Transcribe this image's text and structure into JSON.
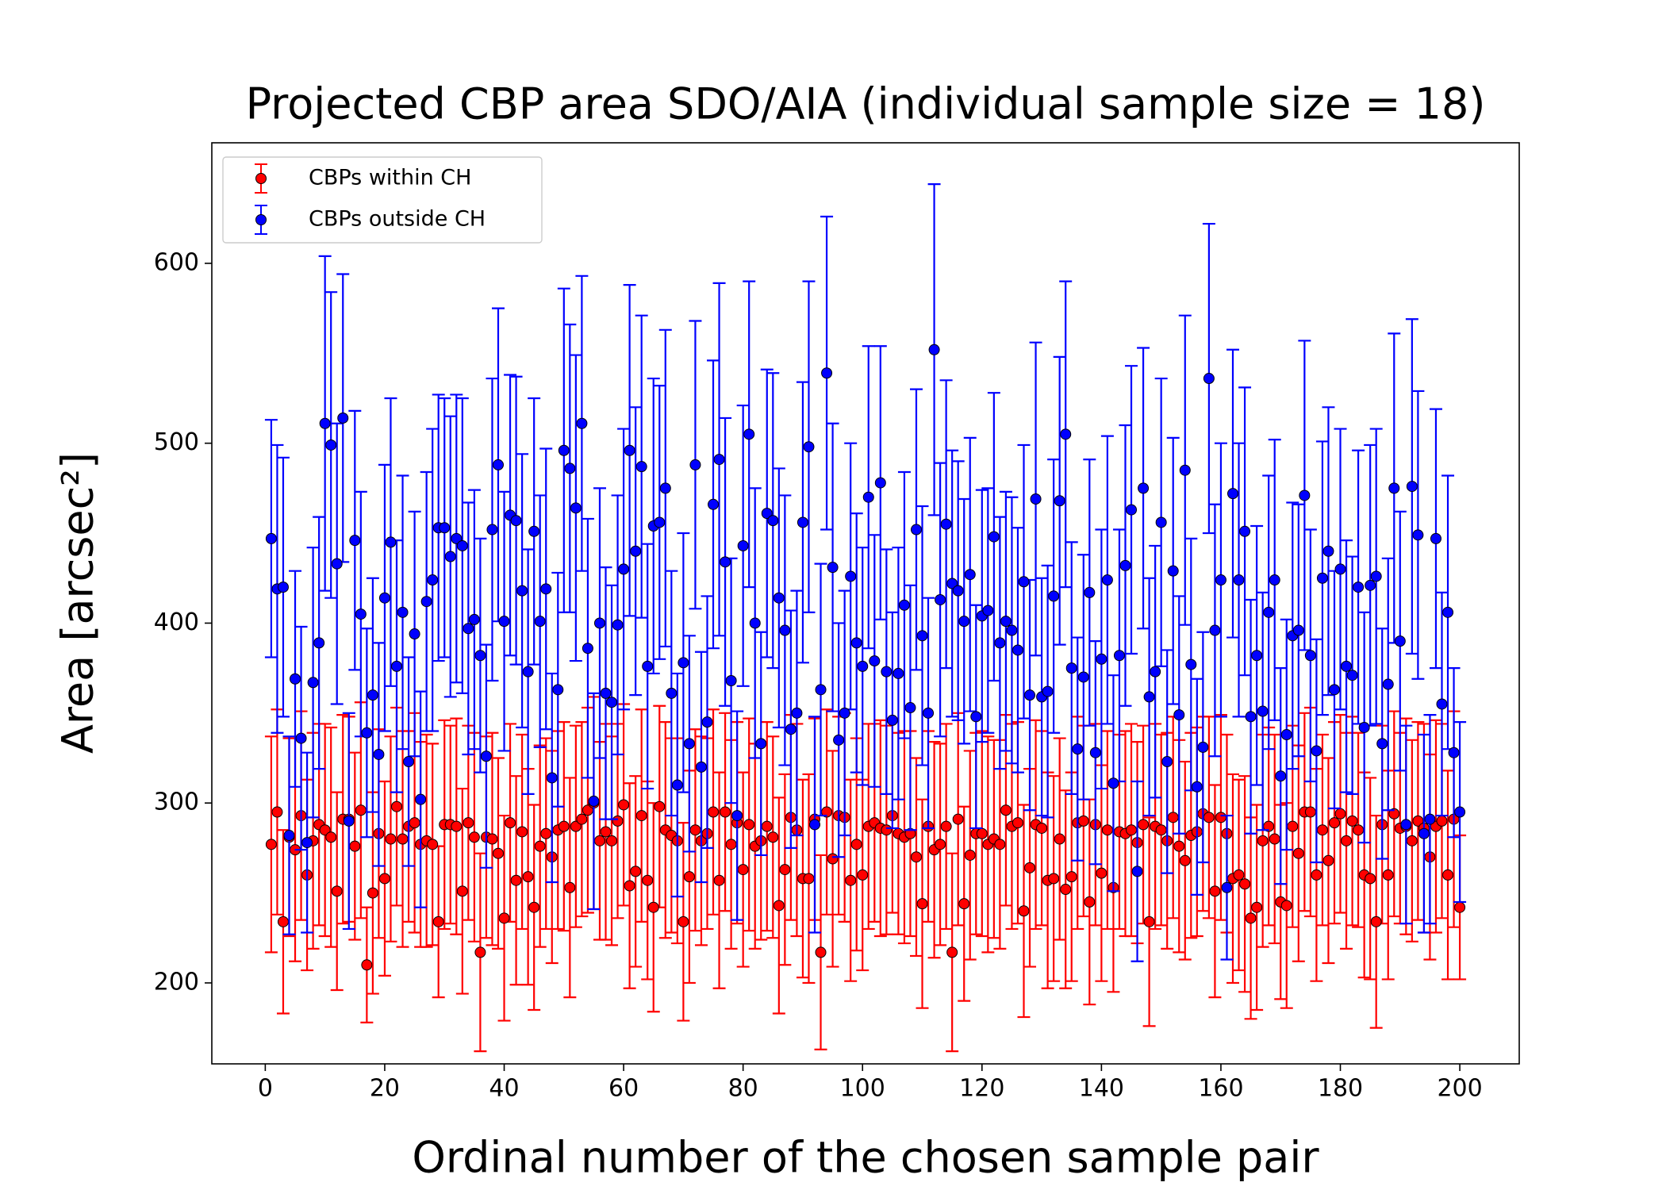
{
  "chart_data": {
    "type": "errorbar",
    "title": "Projected CBP area SDO/AIA (individual sample size = 18)",
    "xlabel": "Ordinal number of the chosen sample pair",
    "ylabel": "Area [arcsec²]",
    "xlim": [
      -8.95,
      209.95
    ],
    "ylim": [
      155,
      667
    ],
    "xticks": [
      0,
      20,
      40,
      60,
      80,
      100,
      120,
      140,
      160,
      180,
      200
    ],
    "yticks": [
      200,
      300,
      400,
      500,
      600
    ],
    "legend": "upper left",
    "x": [
      1,
      2,
      3,
      4,
      5,
      6,
      7,
      8,
      9,
      10,
      11,
      12,
      13,
      14,
      15,
      16,
      17,
      18,
      19,
      20,
      21,
      22,
      23,
      24,
      25,
      26,
      27,
      28,
      29,
      30,
      31,
      32,
      33,
      34,
      35,
      36,
      37,
      38,
      39,
      40,
      41,
      42,
      43,
      44,
      45,
      46,
      47,
      48,
      49,
      50,
      51,
      52,
      53,
      54,
      55,
      56,
      57,
      58,
      59,
      60,
      61,
      62,
      63,
      64,
      65,
      66,
      67,
      68,
      69,
      70,
      71,
      72,
      73,
      74,
      75,
      76,
      77,
      78,
      79,
      80,
      81,
      82,
      83,
      84,
      85,
      86,
      87,
      88,
      89,
      90,
      91,
      92,
      93,
      94,
      95,
      96,
      97,
      98,
      99,
      100,
      101,
      102,
      103,
      104,
      105,
      106,
      107,
      108,
      109,
      110,
      111,
      112,
      113,
      114,
      115,
      116,
      117,
      118,
      119,
      120,
      121,
      122,
      123,
      124,
      125,
      126,
      127,
      128,
      129,
      130,
      131,
      132,
      133,
      134,
      135,
      136,
      137,
      138,
      139,
      140,
      141,
      142,
      143,
      144,
      145,
      146,
      147,
      148,
      149,
      150,
      151,
      152,
      153,
      154,
      155,
      156,
      157,
      158,
      159,
      160,
      161,
      162,
      163,
      164,
      165,
      166,
      167,
      168,
      169,
      170,
      171,
      172,
      173,
      174,
      175,
      176,
      177,
      178,
      179,
      180,
      181,
      182,
      183,
      184,
      185,
      186,
      187,
      188,
      189,
      190,
      191,
      192,
      193,
      194,
      195,
      196,
      197,
      198,
      199,
      200
    ],
    "series": [
      {
        "name": "CBPs within CH",
        "color": "#ff0000",
        "values": [
          277,
          295,
          234,
          281,
          274,
          293,
          260,
          279,
          288,
          285,
          281,
          251,
          291,
          291,
          276,
          296,
          210,
          250,
          283,
          258,
          280,
          298,
          280,
          287,
          289,
          277,
          279,
          277,
          234,
          288,
          288,
          287,
          251,
          289,
          281,
          217,
          281,
          280,
          272,
          236,
          289,
          257,
          284,
          259,
          242,
          276,
          283,
          270,
          285,
          287,
          253,
          287,
          291,
          296,
          300,
          279,
          284,
          279,
          290,
          299,
          254,
          262,
          293,
          257,
          242,
          298,
          285,
          282,
          279,
          234,
          259,
          285,
          279,
          283,
          295,
          257,
          295,
          277,
          289,
          263,
          288,
          276,
          279,
          287,
          281,
          243,
          263,
          292,
          285,
          258,
          258,
          291,
          217,
          295,
          269,
          293,
          292,
          257,
          277,
          260,
          287,
          289,
          286,
          285,
          293,
          283,
          281,
          283,
          270,
          244,
          287,
          274,
          277,
          287,
          217,
          291,
          244,
          271,
          283,
          283,
          277,
          280,
          277,
          296,
          287,
          289,
          240,
          264,
          288,
          286,
          257,
          258,
          280,
          252,
          259,
          289,
          290,
          245,
          288,
          261,
          285,
          253,
          284,
          283,
          285,
          278,
          288,
          234,
          287,
          285,
          279,
          292,
          276,
          268,
          282,
          284,
          294,
          292,
          251,
          292,
          283,
          258,
          260,
          255,
          236,
          242,
          279,
          287,
          280,
          245,
          243,
          287,
          272,
          295,
          295,
          260,
          285,
          268,
          289,
          294,
          279,
          290,
          285,
          260,
          258,
          234,
          288,
          260,
          294,
          286,
          287,
          279,
          290,
          286,
          270,
          287,
          290,
          260,
          291,
          242
        ],
        "errors": [
          60,
          57,
          51,
          55,
          62,
          58,
          53,
          60,
          56,
          59,
          61,
          55,
          58,
          57,
          52,
          60,
          32,
          56,
          58,
          54,
          57,
          55,
          60,
          53,
          61,
          57,
          59,
          56,
          42,
          58,
          55,
          60,
          57,
          54,
          58,
          55,
          56,
          59,
          53,
          57,
          55,
          58,
          54,
          60,
          57,
          56,
          53,
          59,
          55,
          58,
          61,
          56,
          54,
          57,
          59,
          55,
          60,
          58,
          54,
          56,
          57,
          53,
          59,
          55,
          58,
          56,
          60,
          54,
          57,
          55,
          59,
          56,
          58,
          53,
          57,
          60,
          55,
          58,
          56,
          54,
          59,
          57,
          55,
          58,
          56,
          60,
          53,
          57,
          59,
          55,
          58,
          56,
          54,
          57,
          60,
          55,
          58,
          56,
          59,
          53,
          57,
          55,
          60,
          58,
          54,
          56,
          59,
          57,
          55,
          58,
          53,
          60,
          56,
          57,
          55,
          59,
          54,
          58,
          56,
          57,
          60,
          55,
          58,
          53,
          57,
          56,
          59,
          55,
          58,
          54,
          60,
          57,
          56,
          55,
          58,
          59,
          53,
          57,
          56,
          60,
          55,
          58,
          54,
          57,
          59,
          56,
          55,
          58,
          57,
          53,
          60,
          56,
          59,
          55,
          57,
          58,
          54,
          56,
          59,
          57,
          55,
          58,
          53,
          60,
          56,
          57,
          59,
          55,
          58,
          54,
          57,
          56,
          60,
          55,
          58,
          59,
          53,
          57,
          56,
          55,
          60,
          58,
          54,
          57,
          56,
          59,
          55,
          58,
          57,
          53,
          60,
          56,
          55,
          58,
          57,
          59,
          54,
          58,
          60,
          40
        ]
      },
      {
        "name": "CBPs outside CH",
        "color": "#0000ff",
        "values": [
          447,
          419,
          420,
          282,
          369,
          336,
          278,
          367,
          389,
          511,
          499,
          433,
          514,
          290,
          446,
          405,
          339,
          360,
          327,
          414,
          445,
          376,
          406,
          323,
          394,
          302,
          412,
          424,
          453,
          453,
          437,
          447,
          443,
          397,
          402,
          382,
          326,
          452,
          488,
          401,
          460,
          457,
          418,
          373,
          451,
          401,
          419,
          314,
          363,
          496,
          486,
          464,
          511,
          386,
          301,
          400,
          361,
          356,
          399,
          430,
          496,
          440,
          487,
          376,
          454,
          456,
          475,
          361,
          310,
          378,
          333,
          488,
          320,
          345,
          466,
          491,
          434,
          368,
          293,
          443,
          505,
          400,
          333,
          461,
          457,
          414,
          396,
          341,
          350,
          456,
          498,
          288,
          363,
          539,
          431,
          335,
          350,
          426,
          389,
          376,
          470,
          379,
          478,
          373,
          346,
          372,
          410,
          353,
          452,
          393,
          350,
          552,
          413,
          455,
          422,
          418,
          401,
          427,
          348,
          404,
          407,
          448,
          389,
          401,
          396,
          385,
          423,
          360,
          469,
          359,
          362,
          415,
          468,
          505,
          375,
          330,
          370,
          417,
          328,
          380,
          424,
          311,
          382,
          432,
          463,
          262,
          475,
          359,
          373,
          456,
          323,
          429,
          349,
          485,
          377,
          309,
          331,
          536,
          396,
          424,
          253,
          472,
          424,
          451,
          348,
          382,
          351,
          406,
          424,
          315,
          338,
          393,
          396,
          471,
          382,
          329,
          425,
          440,
          363,
          430,
          376,
          371,
          420,
          342,
          421,
          426,
          333,
          366,
          475,
          390,
          288,
          476,
          449,
          283,
          291,
          447,
          355,
          406,
          328,
          295
        ],
        "errors": [
          66,
          80,
          72,
          55,
          60,
          62,
          50,
          75,
          70,
          93,
          85,
          78,
          80,
          60,
          72,
          68,
          58,
          65,
          62,
          74,
          80,
          70,
          76,
          58,
          68,
          60,
          72,
          84,
          74,
          72,
          78,
          80,
          82,
          70,
          72,
          65,
          62,
          84,
          87,
          72,
          78,
          80,
          76,
          68,
          74,
          70,
          78,
          58,
          65,
          90,
          80,
          85,
          82,
          72,
          60,
          75,
          70,
          65,
          72,
          78,
          92,
          80,
          84,
          68,
          82,
          76,
          88,
          68,
          62,
          72,
          60,
          80,
          64,
          70,
          80,
          98,
          80,
          68,
          58,
          78,
          85,
          75,
          62,
          80,
          82,
          72,
          75,
          66,
          68,
          78,
          92,
          60,
          70,
          87,
          80,
          65,
          68,
          74,
          72,
          66,
          84,
          70,
          76,
          68,
          60,
          70,
          74,
          68,
          78,
          72,
          64,
          92,
          76,
          80,
          74,
          72,
          68,
          76,
          62,
          70,
          68,
          80,
          70,
          72,
          74,
          68,
          76,
          64,
          87,
          66,
          70,
          76,
          80,
          85,
          70,
          62,
          68,
          74,
          62,
          72,
          80,
          60,
          70,
          78,
          80,
          50,
          78,
          66,
          70,
          80,
          62,
          74,
          66,
          86,
          70,
          60,
          64,
          86,
          70,
          76,
          40,
          80,
          76,
          80,
          65,
          72,
          66,
          76,
          78,
          60,
          64,
          74,
          70,
          86,
          70,
          62,
          76,
          80,
          66,
          78,
          70,
          66,
          76,
          64,
          78,
          82,
          64,
          70,
          86,
          72,
          55,
          93,
          80,
          55,
          58,
          72,
          62,
          76,
          47,
          50
        ]
      }
    ]
  }
}
